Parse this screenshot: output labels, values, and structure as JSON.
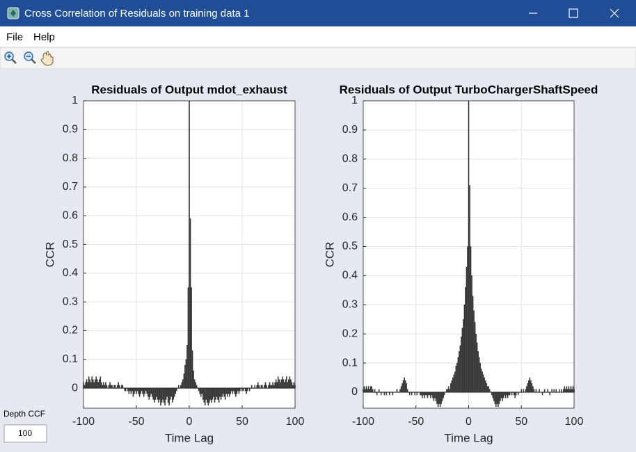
{
  "window_title": "Cross Correlation of Residuals on training data 1",
  "menu": [
    "File",
    "Help"
  ],
  "depth_label": "Depth CCF",
  "depth_value": 100,
  "chart_data": [
    {
      "type": "bar",
      "title": "Residuals of Output mdot_exhaust",
      "xlabel": "Time Lag",
      "ylabel": "CCR",
      "color": "#333333",
      "grid": true,
      "xlim": [
        -100,
        100
      ],
      "xticks": [
        -100,
        -50,
        0,
        50,
        100
      ],
      "ylim": [
        -0.07,
        1
      ],
      "yticks": [
        0,
        0.1,
        0.2,
        0.3,
        0.4,
        0.5,
        0.6,
        0.7,
        0.8,
        0.9,
        1
      ],
      "x": [
        -100,
        -99,
        -98,
        -97,
        -96,
        -95,
        -94,
        -93,
        -92,
        -91,
        -90,
        -89,
        -88,
        -87,
        -86,
        -85,
        -84,
        -83,
        -82,
        -81,
        -80,
        -79,
        -78,
        -77,
        -76,
        -75,
        -74,
        -73,
        -72,
        -71,
        -70,
        -69,
        -68,
        -67,
        -66,
        -65,
        -64,
        -63,
        -62,
        -61,
        -60,
        -59,
        -58,
        -57,
        -56,
        -55,
        -54,
        -53,
        -52,
        -51,
        -50,
        -49,
        -48,
        -47,
        -46,
        -45,
        -44,
        -43,
        -42,
        -41,
        -40,
        -39,
        -38,
        -37,
        -36,
        -35,
        -34,
        -33,
        -32,
        -31,
        -30,
        -29,
        -28,
        -27,
        -26,
        -25,
        -24,
        -23,
        -22,
        -21,
        -20,
        -19,
        -18,
        -17,
        -16,
        -15,
        -14,
        -13,
        -12,
        -11,
        -10,
        -9,
        -8,
        -7,
        -6,
        -5,
        -4,
        -3,
        -2,
        -1,
        0,
        1,
        2,
        3,
        4,
        5,
        6,
        7,
        8,
        9,
        10,
        11,
        12,
        13,
        14,
        15,
        16,
        17,
        18,
        19,
        20,
        21,
        22,
        23,
        24,
        25,
        26,
        27,
        28,
        29,
        30,
        31,
        32,
        33,
        34,
        35,
        36,
        37,
        38,
        39,
        40,
        41,
        42,
        43,
        44,
        45,
        46,
        47,
        48,
        49,
        50,
        51,
        52,
        53,
        54,
        55,
        56,
        57,
        58,
        59,
        60,
        61,
        62,
        63,
        64,
        65,
        66,
        67,
        68,
        69,
        70,
        71,
        72,
        73,
        74,
        75,
        76,
        77,
        78,
        79,
        80,
        81,
        82,
        83,
        84,
        85,
        86,
        87,
        88,
        89,
        90,
        91,
        92,
        93,
        94,
        95,
        96,
        97,
        98,
        99,
        100
      ],
      "values": [
        0.02,
        0.01,
        0.02,
        0.03,
        0.02,
        0.04,
        0.03,
        0.02,
        0.04,
        0.03,
        0.02,
        0.03,
        0.04,
        0.03,
        0.02,
        0.03,
        0.04,
        0.02,
        0.01,
        0.02,
        0.01,
        0.02,
        0.01,
        0.0,
        0.01,
        0.02,
        0.01,
        0.01,
        0.0,
        0.01,
        0.01,
        0.0,
        0.01,
        0.02,
        0.01,
        0.0,
        0.01,
        0.01,
        0.0,
        -0.01,
        -0.01,
        0.0,
        -0.01,
        -0.02,
        -0.01,
        -0.02,
        -0.01,
        -0.03,
        -0.02,
        -0.01,
        -0.02,
        -0.01,
        -0.02,
        -0.03,
        -0.02,
        -0.01,
        -0.02,
        -0.03,
        -0.02,
        -0.01,
        -0.02,
        -0.03,
        -0.04,
        -0.03,
        -0.02,
        -0.03,
        -0.04,
        -0.05,
        -0.04,
        -0.03,
        -0.04,
        -0.05,
        -0.04,
        -0.06,
        -0.05,
        -0.04,
        -0.05,
        -0.06,
        -0.04,
        -0.03,
        -0.05,
        -0.06,
        -0.04,
        -0.03,
        -0.05,
        -0.04,
        -0.03,
        -0.02,
        -0.01,
        0.0,
        0.01,
        0.0,
        0.01,
        0.02,
        0.03,
        0.05,
        0.08,
        0.1,
        0.15,
        0.35,
        1,
        0.59,
        0.35,
        0.13,
        0.06,
        0.03,
        0.02,
        0.01,
        0.0,
        -0.01,
        -0.02,
        -0.03,
        -0.02,
        -0.04,
        -0.05,
        -0.06,
        -0.04,
        -0.05,
        -0.06,
        -0.05,
        -0.04,
        -0.05,
        -0.04,
        -0.03,
        -0.05,
        -0.04,
        -0.03,
        -0.04,
        -0.05,
        -0.03,
        -0.04,
        -0.03,
        -0.02,
        -0.03,
        -0.04,
        -0.02,
        -0.03,
        -0.02,
        -0.03,
        -0.02,
        -0.01,
        -0.02,
        -0.01,
        -0.02,
        -0.03,
        -0.02,
        -0.01,
        -0.02,
        -0.01,
        0.0,
        -0.01,
        -0.01,
        0.0,
        -0.01,
        -0.02,
        -0.01,
        0.0,
        -0.01,
        0.0,
        0.01,
        0.0,
        0.0,
        0.01,
        0.0,
        0.01,
        0.02,
        0.01,
        0.0,
        0.01,
        0.01,
        0.0,
        0.01,
        0.02,
        0.01,
        0.0,
        0.01,
        0.02,
        0.01,
        0.01,
        0.02,
        0.01,
        0.02,
        0.03,
        0.02,
        0.04,
        0.03,
        0.02,
        0.03,
        0.04,
        0.03,
        0.02,
        0.03,
        0.04,
        0.02,
        0.03,
        0.04,
        0.03,
        0.02,
        0.01,
        0.02,
        0.01
      ]
    },
    {
      "type": "bar",
      "title": "Residuals of Output TurboChargerShaftSpeed",
      "xlabel": "Time Lag",
      "ylabel": "CCR",
      "color": "#333333",
      "grid": true,
      "xlim": [
        -100,
        100
      ],
      "xticks": [
        -100,
        -50,
        0,
        50,
        100
      ],
      "ylim": [
        -0.055,
        1
      ],
      "yticks": [
        0,
        0.1,
        0.2,
        0.3,
        0.4,
        0.5,
        0.6,
        0.7,
        0.8,
        0.9,
        1
      ],
      "x": [
        -100,
        -99,
        -98,
        -97,
        -96,
        -95,
        -94,
        -93,
        -92,
        -91,
        -90,
        -89,
        -88,
        -87,
        -86,
        -85,
        -84,
        -83,
        -82,
        -81,
        -80,
        -79,
        -78,
        -77,
        -76,
        -75,
        -74,
        -73,
        -72,
        -71,
        -70,
        -69,
        -68,
        -67,
        -66,
        -65,
        -64,
        -63,
        -62,
        -61,
        -60,
        -59,
        -58,
        -57,
        -56,
        -55,
        -54,
        -53,
        -52,
        -51,
        -50,
        -49,
        -48,
        -47,
        -46,
        -45,
        -44,
        -43,
        -42,
        -41,
        -40,
        -39,
        -38,
        -37,
        -36,
        -35,
        -34,
        -33,
        -32,
        -31,
        -30,
        -29,
        -28,
        -27,
        -26,
        -25,
        -24,
        -23,
        -22,
        -21,
        -20,
        -19,
        -18,
        -17,
        -16,
        -15,
        -14,
        -13,
        -12,
        -11,
        -10,
        -9,
        -8,
        -7,
        -6,
        -5,
        -4,
        -3,
        -2,
        -1,
        0,
        1,
        2,
        3,
        4,
        5,
        6,
        7,
        8,
        9,
        10,
        11,
        12,
        13,
        14,
        15,
        16,
        17,
        18,
        19,
        20,
        21,
        22,
        23,
        24,
        25,
        26,
        27,
        28,
        29,
        30,
        31,
        32,
        33,
        34,
        35,
        36,
        37,
        38,
        39,
        40,
        41,
        42,
        43,
        44,
        45,
        46,
        47,
        48,
        49,
        50,
        51,
        52,
        53,
        54,
        55,
        56,
        57,
        58,
        59,
        60,
        61,
        62,
        63,
        64,
        65,
        66,
        67,
        68,
        69,
        70,
        71,
        72,
        73,
        74,
        75,
        76,
        77,
        78,
        79,
        80,
        81,
        82,
        83,
        84,
        85,
        86,
        87,
        88,
        89,
        90,
        91,
        92,
        93,
        94,
        95,
        96,
        97,
        98,
        99,
        100
      ],
      "values": [
        0.01,
        0.02,
        0.01,
        0.02,
        0.01,
        0.02,
        0.01,
        0.02,
        0.02,
        0.01,
        0.0,
        0.01,
        0.0,
        -0.01,
        0.0,
        0.01,
        0.0,
        -0.01,
        0.0,
        0.0,
        -0.01,
        0.0,
        -0.01,
        0.0,
        0.0,
        -0.01,
        0.0,
        0.0,
        -0.01,
        0.0,
        0.0,
        0.0,
        0.01,
        0.0,
        0.0,
        0.01,
        0.02,
        0.03,
        0.04,
        0.05,
        0.04,
        0.03,
        0.01,
        0.0,
        -0.01,
        0.0,
        -0.01,
        0.0,
        0.0,
        -0.01,
        0.0,
        -0.01,
        0.0,
        0.0,
        -0.01,
        -0.01,
        -0.02,
        -0.01,
        -0.02,
        -0.01,
        -0.01,
        -0.02,
        -0.01,
        -0.01,
        -0.02,
        -0.01,
        -0.02,
        -0.03,
        -0.02,
        -0.03,
        -0.04,
        -0.05,
        -0.04,
        -0.05,
        -0.04,
        -0.03,
        -0.02,
        -0.01,
        0.0,
        0.01,
        0.01,
        0.02,
        0.01,
        0.03,
        0.04,
        0.05,
        0.06,
        0.07,
        0.09,
        0.1,
        0.12,
        0.14,
        0.16,
        0.19,
        0.22,
        0.25,
        0.3,
        0.36,
        0.43,
        0.5,
        1,
        0.71,
        0.5,
        0.4,
        0.33,
        0.28,
        0.24,
        0.2,
        0.17,
        0.14,
        0.12,
        0.1,
        0.08,
        0.07,
        0.06,
        0.05,
        0.04,
        0.03,
        0.02,
        0.02,
        0.01,
        0.0,
        -0.01,
        -0.02,
        -0.03,
        -0.04,
        -0.05,
        -0.04,
        -0.05,
        -0.04,
        -0.03,
        -0.02,
        -0.03,
        -0.02,
        -0.01,
        -0.02,
        -0.01,
        -0.02,
        -0.01,
        -0.01,
        0.0,
        -0.01,
        0.0,
        -0.01,
        -0.02,
        -0.01,
        0.0,
        -0.01,
        0.0,
        0.0,
        0.01,
        0.0,
        0.01,
        0.0,
        0.01,
        0.02,
        0.03,
        0.04,
        0.05,
        0.04,
        0.03,
        0.02,
        0.01,
        0.0,
        0.01,
        0.0,
        0.0,
        0.01,
        0.0,
        0.0,
        -0.01,
        0.0,
        0.01,
        0.0,
        0.0,
        0.01,
        0.0,
        -0.01,
        0.0,
        0.01,
        0.0,
        0.01,
        0.0,
        0.01,
        0.0,
        0.0,
        0.01,
        0.0,
        0.01,
        0.0,
        0.01,
        0.02,
        0.01,
        0.02,
        0.01,
        0.02,
        0.01,
        0.02,
        0.01,
        0.02,
        0.01
      ]
    }
  ]
}
